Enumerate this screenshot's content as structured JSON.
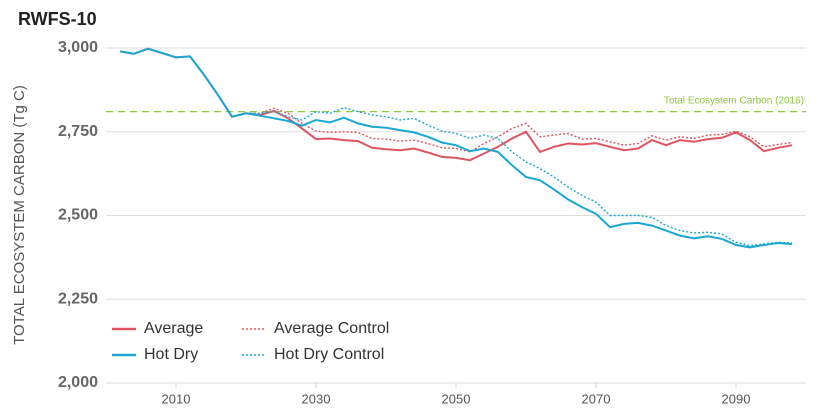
{
  "chart_data": {
    "type": "line",
    "title": "RWFS-10",
    "y_label": "TOTAL ECOSYSTEM CARBON (Tg C)",
    "annotation": {
      "text": "Total Ecosystem Carbon (2016)",
      "value": 2810,
      "color": "#8dc63f"
    },
    "x": [
      2002,
      2004,
      2006,
      2008,
      2010,
      2012,
      2014,
      2016,
      2018,
      2020,
      2022,
      2024,
      2026,
      2028,
      2030,
      2032,
      2034,
      2036,
      2038,
      2040,
      2042,
      2044,
      2046,
      2048,
      2050,
      2052,
      2054,
      2056,
      2058,
      2060,
      2062,
      2064,
      2066,
      2068,
      2070,
      2072,
      2074,
      2076,
      2078,
      2080,
      2082,
      2084,
      2086,
      2088,
      2090,
      2092,
      2094,
      2096,
      2098
    ],
    "series": [
      {
        "name": "Average",
        "color": "#e0545f",
        "style": "solid",
        "values": [
          2990,
          2983,
          2998,
          2985,
          2972,
          2975,
          2920,
          2860,
          2795,
          2805,
          2800,
          2812,
          2790,
          2760,
          2728,
          2730,
          2725,
          2722,
          2702,
          2698,
          2695,
          2700,
          2688,
          2675,
          2672,
          2665,
          2685,
          2705,
          2730,
          2750,
          2690,
          2705,
          2715,
          2712,
          2716,
          2705,
          2695,
          2700,
          2725,
          2710,
          2725,
          2720,
          2728,
          2732,
          2748,
          2725,
          2692,
          2702,
          2710
        ]
      },
      {
        "name": "Average Control",
        "color": "#e0545f",
        "style": "dotted",
        "values": [
          2990,
          2983,
          2998,
          2985,
          2972,
          2975,
          2920,
          2860,
          2795,
          2805,
          2805,
          2820,
          2805,
          2775,
          2752,
          2748,
          2750,
          2748,
          2730,
          2728,
          2722,
          2725,
          2715,
          2702,
          2700,
          2690,
          2715,
          2735,
          2760,
          2775,
          2735,
          2740,
          2745,
          2728,
          2730,
          2720,
          2710,
          2715,
          2738,
          2725,
          2735,
          2730,
          2740,
          2742,
          2752,
          2735,
          2705,
          2712,
          2718
        ]
      },
      {
        "name": "Hot Dry",
        "color": "#1aa7d6",
        "style": "solid",
        "values": [
          2990,
          2983,
          2998,
          2985,
          2972,
          2975,
          2920,
          2860,
          2795,
          2805,
          2798,
          2790,
          2782,
          2768,
          2785,
          2778,
          2792,
          2775,
          2765,
          2762,
          2755,
          2748,
          2735,
          2718,
          2710,
          2692,
          2700,
          2690,
          2650,
          2615,
          2605,
          2578,
          2548,
          2525,
          2505,
          2465,
          2475,
          2478,
          2470,
          2455,
          2440,
          2432,
          2438,
          2430,
          2412,
          2405,
          2412,
          2418,
          2415
        ]
      },
      {
        "name": "Hot Dry Control",
        "color": "#1aa7d6",
        "style": "dotted",
        "values": [
          2990,
          2983,
          2998,
          2985,
          2972,
          2975,
          2920,
          2860,
          2795,
          2805,
          2805,
          2810,
          2795,
          2785,
          2810,
          2805,
          2822,
          2810,
          2800,
          2795,
          2785,
          2790,
          2770,
          2752,
          2745,
          2730,
          2740,
          2730,
          2690,
          2660,
          2640,
          2615,
          2585,
          2560,
          2540,
          2500,
          2500,
          2500,
          2495,
          2470,
          2455,
          2448,
          2450,
          2445,
          2420,
          2410,
          2415,
          2420,
          2418
        ]
      }
    ],
    "xlim": [
      2000,
      2100
    ],
    "xticks": [
      2010,
      2030,
      2050,
      2070,
      2090
    ],
    "ylim": [
      2000,
      3000
    ],
    "yticks": [
      {
        "value": 2000,
        "label": "2,000"
      },
      {
        "value": 2250,
        "label": "2,250"
      },
      {
        "value": 2500,
        "label": "2,500"
      },
      {
        "value": 2750,
        "label": "2,750"
      },
      {
        "value": 3000,
        "label": "3,000"
      }
    ],
    "grid": true,
    "legend": "lower left"
  }
}
